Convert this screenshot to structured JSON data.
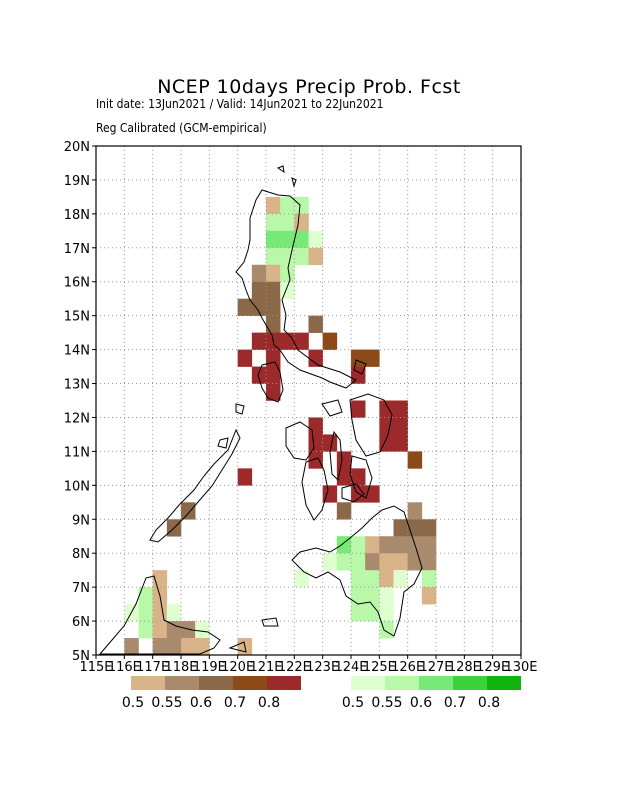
{
  "header": {
    "title": "NCEP 10days Precip Prob. Fcst",
    "subtitle1": "Init date: 13Jun2021 / Valid: 14Jun2021 to 22Jun2021",
    "subtitle2": "Reg Calibrated (GCM-empirical)"
  },
  "axes": {
    "y_ticks": [
      "5N",
      "6N",
      "7N",
      "8N",
      "9N",
      "10N",
      "11N",
      "12N",
      "13N",
      "14N",
      "15N",
      "16N",
      "17N",
      "18N",
      "19N",
      "20N"
    ],
    "x_ticks": [
      "115E",
      "116E",
      "117E",
      "118E",
      "119E",
      "120E",
      "121E",
      "122E",
      "123E",
      "124E",
      "125E",
      "126E",
      "127E",
      "128E",
      "129E",
      "130E"
    ],
    "lat_range": [
      5,
      20
    ],
    "lon_range": [
      115,
      130
    ],
    "grid": "dotted"
  },
  "legend_dry": {
    "colors": [
      "#d8b488",
      "#a98a6c",
      "#8a6848",
      "#8c4a18",
      "#9c2a2a"
    ],
    "labels": [
      "0.5",
      "0.55",
      "0.6",
      "0.7",
      "0.8"
    ]
  },
  "legend_wet": {
    "colors": [
      "#e0ffd0",
      "#b8f8a8",
      "#78e878",
      "#3cd23c",
      "#10b410"
    ],
    "labels": [
      "0.5",
      "0.55",
      "0.6",
      "0.7",
      "0.8"
    ]
  },
  "cell_colors": {
    "d1": "#d8b488",
    "d2": "#a98a6c",
    "d3": "#8a6848",
    "d4": "#8c4a18",
    "d5": "#9c2a2a",
    "w1": "#e0ffd0",
    "w2": "#b8f8a8",
    "w3": "#78e878"
  },
  "cells": [
    {
      "lon": 121.0,
      "lat": 18.0,
      "c": "d1"
    },
    {
      "lon": 121.5,
      "lat": 18.0,
      "c": "w2"
    },
    {
      "lon": 122.0,
      "lat": 18.0,
      "c": "w2"
    },
    {
      "lon": 121.0,
      "lat": 17.5,
      "c": "w2"
    },
    {
      "lon": 121.5,
      "lat": 17.5,
      "c": "w2"
    },
    {
      "lon": 122.0,
      "lat": 17.5,
      "c": "d1"
    },
    {
      "lon": 121.0,
      "lat": 17.0,
      "c": "w3"
    },
    {
      "lon": 121.5,
      "lat": 17.0,
      "c": "w3"
    },
    {
      "lon": 122.0,
      "lat": 17.0,
      "c": "w3"
    },
    {
      "lon": 122.5,
      "lat": 17.0,
      "c": "w1"
    },
    {
      "lon": 121.0,
      "lat": 16.5,
      "c": "w2"
    },
    {
      "lon": 121.5,
      "lat": 16.5,
      "c": "w2"
    },
    {
      "lon": 122.0,
      "lat": 16.5,
      "c": "w2"
    },
    {
      "lon": 122.5,
      "lat": 16.5,
      "c": "d1"
    },
    {
      "lon": 120.5,
      "lat": 16.0,
      "c": "d2"
    },
    {
      "lon": 121.0,
      "lat": 16.0,
      "c": "d1"
    },
    {
      "lon": 121.5,
      "lat": 16.0,
      "c": "w2"
    },
    {
      "lon": 120.5,
      "lat": 15.5,
      "c": "d3"
    },
    {
      "lon": 121.0,
      "lat": 15.5,
      "c": "d3"
    },
    {
      "lon": 121.5,
      "lat": 15.5,
      "c": "w1"
    },
    {
      "lon": 120.0,
      "lat": 15.0,
      "c": "d3"
    },
    {
      "lon": 120.5,
      "lat": 15.0,
      "c": "d3"
    },
    {
      "lon": 121.0,
      "lat": 15.0,
      "c": "d3"
    },
    {
      "lon": 121.0,
      "lat": 14.5,
      "c": "d3"
    },
    {
      "lon": 122.5,
      "lat": 14.5,
      "c": "d3"
    },
    {
      "lon": 120.5,
      "lat": 14.0,
      "c": "d5"
    },
    {
      "lon": 121.0,
      "lat": 14.0,
      "c": "d5"
    },
    {
      "lon": 121.5,
      "lat": 14.0,
      "c": "d5"
    },
    {
      "lon": 122.0,
      "lat": 14.0,
      "c": "d5"
    },
    {
      "lon": 123.0,
      "lat": 14.0,
      "c": "d4"
    },
    {
      "lon": 120.0,
      "lat": 13.5,
      "c": "d5"
    },
    {
      "lon": 121.0,
      "lat": 13.5,
      "c": "d5"
    },
    {
      "lon": 122.5,
      "lat": 13.5,
      "c": "d5"
    },
    {
      "lon": 124.0,
      "lat": 13.5,
      "c": "d4"
    },
    {
      "lon": 124.5,
      "lat": 13.5,
      "c": "d4"
    },
    {
      "lon": 120.5,
      "lat": 13.0,
      "c": "d5"
    },
    {
      "lon": 121.0,
      "lat": 13.0,
      "c": "d5"
    },
    {
      "lon": 124.0,
      "lat": 13.0,
      "c": "d5"
    },
    {
      "lon": 121.0,
      "lat": 12.5,
      "c": "d5"
    },
    {
      "lon": 124.0,
      "lat": 12.0,
      "c": "d5"
    },
    {
      "lon": 125.0,
      "lat": 12.0,
      "c": "d5"
    },
    {
      "lon": 125.5,
      "lat": 12.0,
      "c": "d5"
    },
    {
      "lon": 122.5,
      "lat": 11.5,
      "c": "d5"
    },
    {
      "lon": 125.0,
      "lat": 11.5,
      "c": "d5"
    },
    {
      "lon": 125.5,
      "lat": 11.5,
      "c": "d5"
    },
    {
      "lon": 122.5,
      "lat": 11.0,
      "c": "d5"
    },
    {
      "lon": 123.0,
      "lat": 11.0,
      "c": "d5"
    },
    {
      "lon": 125.0,
      "lat": 11.0,
      "c": "d5"
    },
    {
      "lon": 125.5,
      "lat": 11.0,
      "c": "d5"
    },
    {
      "lon": 122.5,
      "lat": 10.5,
      "c": "d5"
    },
    {
      "lon": 123.5,
      "lat": 10.5,
      "c": "d5"
    },
    {
      "lon": 126.0,
      "lat": 10.5,
      "c": "d4"
    },
    {
      "lon": 123.5,
      "lat": 10.0,
      "c": "d5"
    },
    {
      "lon": 124.0,
      "lat": 10.0,
      "c": "d5"
    },
    {
      "lon": 120.0,
      "lat": 10.0,
      "c": "d5"
    },
    {
      "lon": 123.0,
      "lat": 9.5,
      "c": "d5"
    },
    {
      "lon": 124.0,
      "lat": 9.5,
      "c": "d5"
    },
    {
      "lon": 124.5,
      "lat": 9.5,
      "c": "d5"
    },
    {
      "lon": 118.0,
      "lat": 9.0,
      "c": "d3"
    },
    {
      "lon": 123.5,
      "lat": 9.0,
      "c": "d3"
    },
    {
      "lon": 126.0,
      "lat": 9.0,
      "c": "d2"
    },
    {
      "lon": 117.5,
      "lat": 8.5,
      "c": "d3"
    },
    {
      "lon": 125.5,
      "lat": 8.5,
      "c": "d3"
    },
    {
      "lon": 126.0,
      "lat": 8.5,
      "c": "d3"
    },
    {
      "lon": 126.5,
      "lat": 8.5,
      "c": "d3"
    },
    {
      "lon": 123.5,
      "lat": 8.0,
      "c": "w3"
    },
    {
      "lon": 124.0,
      "lat": 8.0,
      "c": "w2"
    },
    {
      "lon": 124.5,
      "lat": 8.0,
      "c": "d1"
    },
    {
      "lon": 125.0,
      "lat": 8.0,
      "c": "d2"
    },
    {
      "lon": 125.5,
      "lat": 8.0,
      "c": "d2"
    },
    {
      "lon": 126.0,
      "lat": 8.0,
      "c": "d2"
    },
    {
      "lon": 126.5,
      "lat": 8.0,
      "c": "d2"
    },
    {
      "lon": 123.0,
      "lat": 7.5,
      "c": "w1"
    },
    {
      "lon": 123.5,
      "lat": 7.5,
      "c": "w2"
    },
    {
      "lon": 124.0,
      "lat": 7.5,
      "c": "w2"
    },
    {
      "lon": 124.5,
      "lat": 7.5,
      "c": "d2"
    },
    {
      "lon": 125.0,
      "lat": 7.5,
      "c": "d1"
    },
    {
      "lon": 125.5,
      "lat": 7.5,
      "c": "d1"
    },
    {
      "lon": 126.0,
      "lat": 7.5,
      "c": "d2"
    },
    {
      "lon": 126.5,
      "lat": 7.5,
      "c": "d2"
    },
    {
      "lon": 122.0,
      "lat": 7.0,
      "c": "w1"
    },
    {
      "lon": 124.0,
      "lat": 7.0,
      "c": "w2"
    },
    {
      "lon": 124.5,
      "lat": 7.0,
      "c": "w2"
    },
    {
      "lon": 125.0,
      "lat": 7.0,
      "c": "d1"
    },
    {
      "lon": 125.5,
      "lat": 7.0,
      "c": "w1"
    },
    {
      "lon": 126.5,
      "lat": 7.0,
      "c": "w2"
    },
    {
      "lon": 124.0,
      "lat": 6.5,
      "c": "w2"
    },
    {
      "lon": 124.5,
      "lat": 6.5,
      "c": "w2"
    },
    {
      "lon": 125.0,
      "lat": 6.5,
      "c": "w1"
    },
    {
      "lon": 126.5,
      "lat": 6.5,
      "c": "d1"
    },
    {
      "lon": 124.0,
      "lat": 6.0,
      "c": "w2"
    },
    {
      "lon": 124.5,
      "lat": 6.0,
      "c": "w2"
    },
    {
      "lon": 125.0,
      "lat": 6.0,
      "c": "w1"
    },
    {
      "lon": 125.0,
      "lat": 5.5,
      "c": "w2"
    },
    {
      "lon": 116.5,
      "lat": 6.5,
      "c": "w2"
    },
    {
      "lon": 117.0,
      "lat": 7.0,
      "c": "d1"
    },
    {
      "lon": 117.0,
      "lat": 6.5,
      "c": "d1"
    },
    {
      "lon": 116.5,
      "lat": 6.0,
      "c": "w2"
    },
    {
      "lon": 117.0,
      "lat": 6.0,
      "c": "d1"
    },
    {
      "lon": 117.5,
      "lat": 6.0,
      "c": "w1"
    },
    {
      "lon": 116.0,
      "lat": 6.0,
      "c": "w1"
    },
    {
      "lon": 116.5,
      "lat": 5.5,
      "c": "w2"
    },
    {
      "lon": 117.0,
      "lat": 5.5,
      "c": "d1"
    },
    {
      "lon": 117.5,
      "lat": 5.5,
      "c": "d2"
    },
    {
      "lon": 118.0,
      "lat": 5.5,
      "c": "d2"
    },
    {
      "lon": 118.5,
      "lat": 5.5,
      "c": "w1"
    },
    {
      "lon": 116.0,
      "lat": 5.0,
      "c": "d2"
    },
    {
      "lon": 117.0,
      "lat": 5.0,
      "c": "d2"
    },
    {
      "lon": 117.5,
      "lat": 5.0,
      "c": "d2"
    },
    {
      "lon": 118.0,
      "lat": 5.0,
      "c": "d1"
    },
    {
      "lon": 118.5,
      "lat": 5.0,
      "c": "d1"
    },
    {
      "lon": 120.0,
      "lat": 5.0,
      "c": "d1"
    }
  ]
}
